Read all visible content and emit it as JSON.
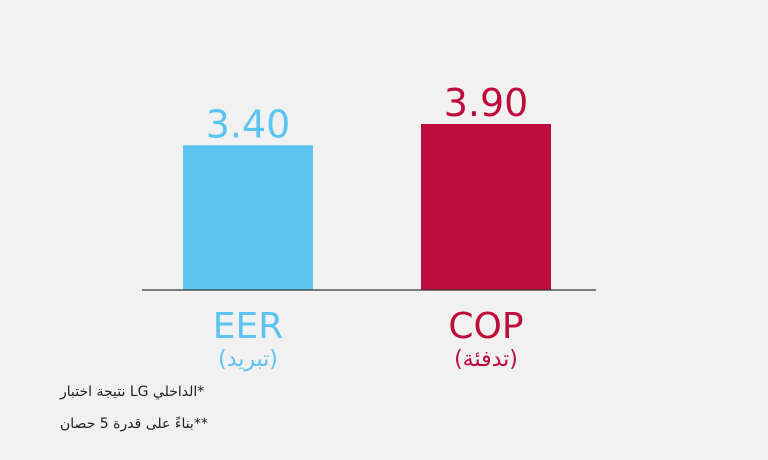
{
  "chart_data": {
    "type": "bar",
    "categories": [
      "EER",
      "COP"
    ],
    "category_sublabels": [
      "(تبريد)",
      "(تدفئة)"
    ],
    "values": [
      3.4,
      3.9
    ],
    "value_labels": [
      "3.40",
      "3.90"
    ],
    "colors": [
      "#5bc4f0",
      "#be0d3c"
    ],
    "title": "",
    "xlabel": "",
    "ylabel": "",
    "ylim": [
      0,
      4.2
    ],
    "grid": false,
    "legend": "none"
  },
  "footnotes": [
    "*الداخلي LG نتيجة اختبار",
    "**بناءً على قدرة 5 حصان"
  ]
}
